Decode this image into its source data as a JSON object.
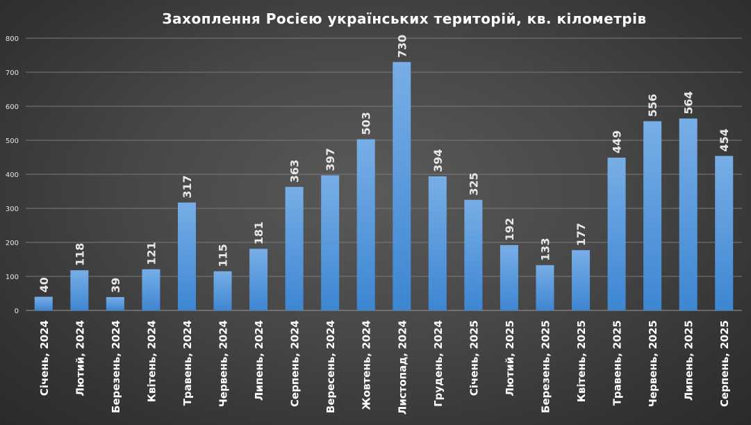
{
  "chart_data": {
    "type": "bar",
    "title": "Захоплення Росією українських територій,  кв. кілометрів",
    "categories": [
      "Січень, 2024",
      "Лютий, 2024",
      "Березень, 2024",
      "Квітень, 2024",
      "Травень, 2024",
      "Червень, 2024",
      "Липень, 2024",
      "Серпень, 2024",
      "Вересень, 2024",
      "Жовтень, 2024",
      "Листопад, 2024",
      "Грудень, 2024",
      "Січень, 2025",
      "Лютий, 2025",
      "Березень, 2025",
      "Квітень, 2025",
      "Травень, 2025",
      "Червень, 2025",
      "Липень, 2025",
      "Серпень, 2025"
    ],
    "values": [
      40,
      118,
      39,
      121,
      317,
      115,
      181,
      363,
      397,
      503,
      730,
      394,
      325,
      192,
      133,
      177,
      449,
      556,
      564,
      454
    ],
    "ylim": [
      0,
      800
    ],
    "yticks": [
      0,
      100,
      200,
      300,
      400,
      500,
      600,
      700,
      800
    ],
    "grid": true,
    "legend": "none",
    "colors": {
      "bar_top": "#78aee6",
      "bar_bottom": "#3d86d2",
      "text": "#ffffff"
    }
  }
}
